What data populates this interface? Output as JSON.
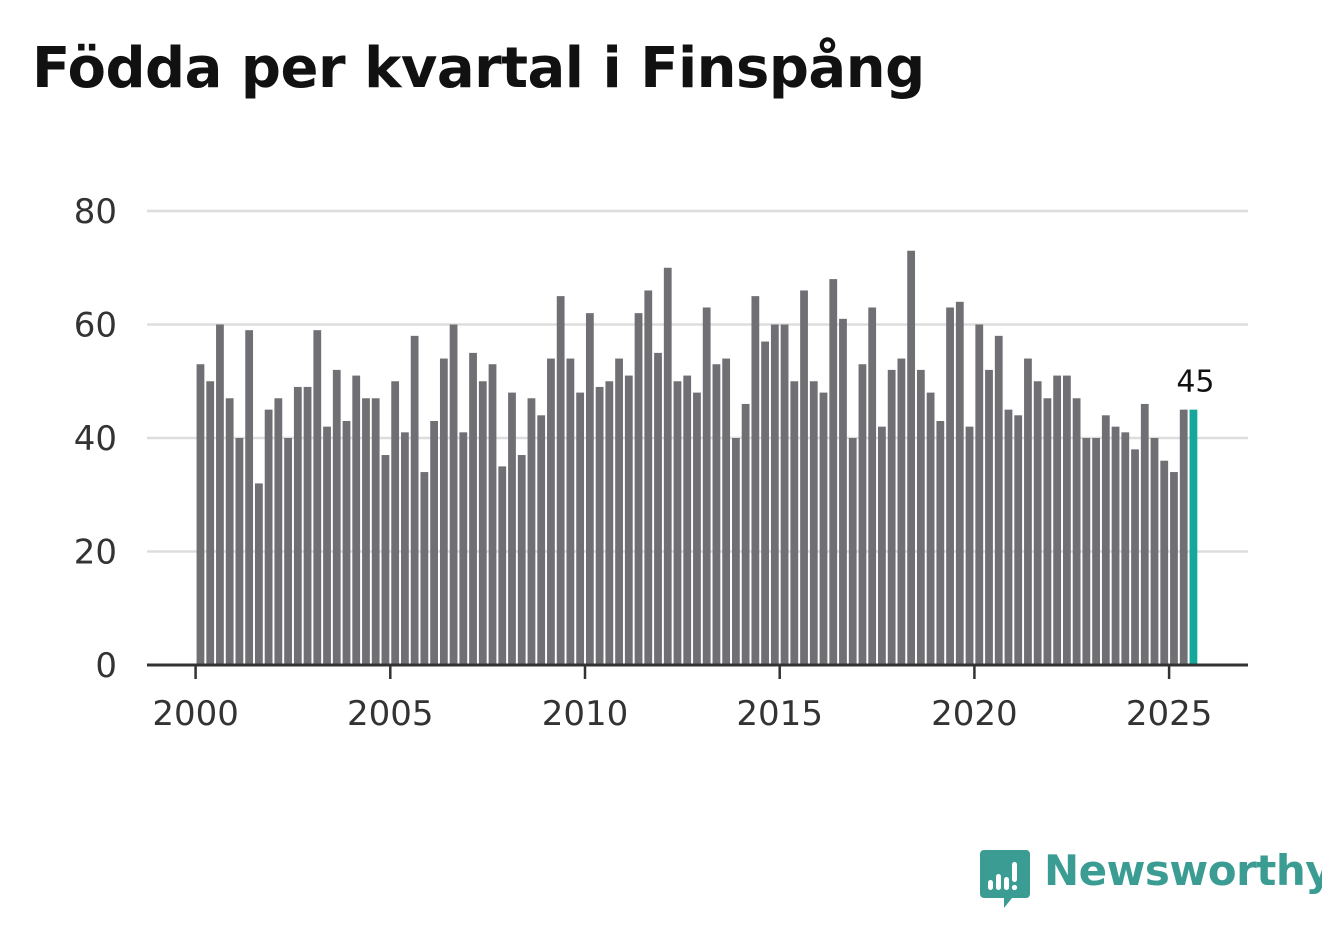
{
  "title": "Födda per kvartal i Finspång",
  "brand": "Newsworthy",
  "colors": {
    "bar": "#707074",
    "highlight": "#14a89c",
    "grid": "#dddddd",
    "axis": "#333333",
    "logo": "#3a9c92"
  },
  "chart_data": {
    "type": "bar",
    "title": "Födda per kvartal i Finspång",
    "xlabel": "",
    "ylabel": "",
    "ylim": [
      0,
      80
    ],
    "yticks": [
      "0",
      "20",
      "40",
      "60",
      "80"
    ],
    "xtick_labels": [
      "2000",
      "2005",
      "2010",
      "2015",
      "2020",
      "2025"
    ],
    "grid": true,
    "start_year": 2000,
    "periods_per_year": 4,
    "highlight_index": 102,
    "highlight_label": "45",
    "values": [
      53,
      50,
      60,
      47,
      40,
      59,
      32,
      45,
      47,
      40,
      49,
      49,
      59,
      42,
      52,
      43,
      51,
      47,
      47,
      37,
      50,
      41,
      58,
      34,
      43,
      54,
      60,
      41,
      55,
      50,
      53,
      35,
      48,
      37,
      47,
      44,
      54,
      65,
      54,
      48,
      62,
      49,
      50,
      54,
      51,
      62,
      66,
      55,
      70,
      50,
      51,
      48,
      63,
      53,
      54,
      40,
      46,
      65,
      57,
      60,
      60,
      50,
      66,
      50,
      48,
      68,
      61,
      40,
      53,
      63,
      42,
      52,
      54,
      73,
      52,
      48,
      43,
      63,
      64,
      42,
      60,
      52,
      58,
      45,
      44,
      54,
      50,
      47,
      51,
      51,
      47,
      40,
      40,
      44,
      42,
      41,
      38,
      46,
      40,
      36,
      34,
      45,
      45
    ]
  }
}
